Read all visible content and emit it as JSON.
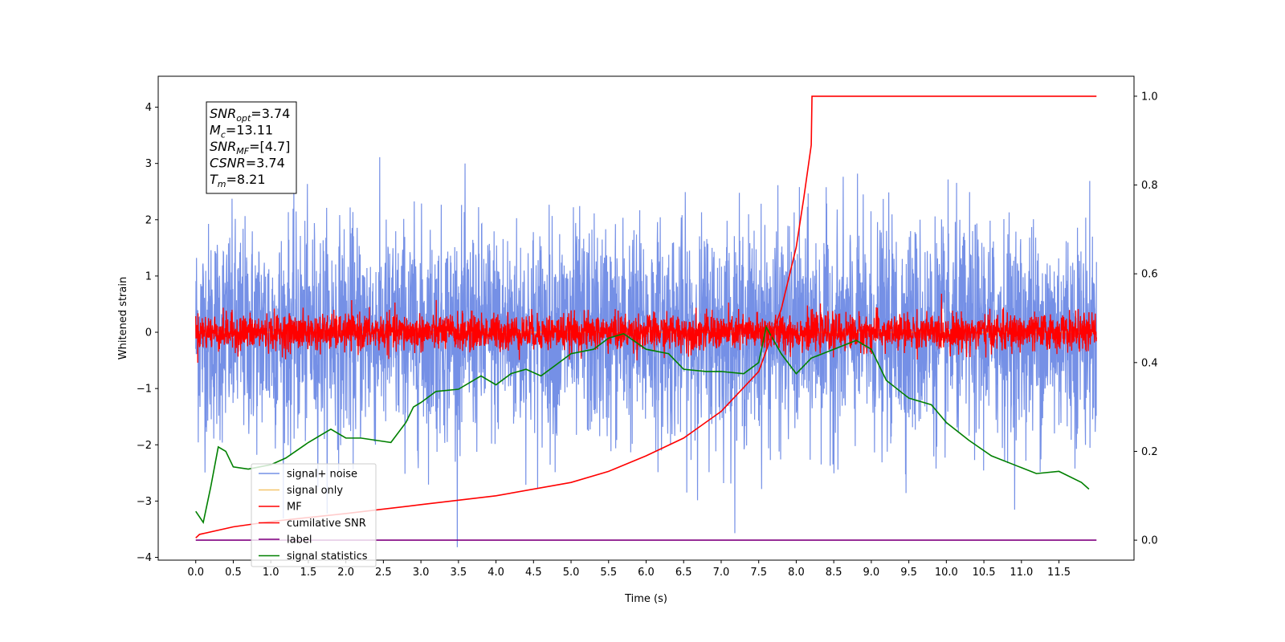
{
  "chart_data": {
    "type": "line",
    "xlabel": "Time (s)",
    "ylabel": "Whitened strain",
    "xlim": [
      -0.5,
      12.5
    ],
    "ylim": [
      -4.05,
      4.55
    ],
    "y2lim": [
      -0.045,
      1.045
    ],
    "x_ticks": [
      "0.0",
      "0.5",
      "1.0",
      "1.5",
      "2.0",
      "2.5",
      "3.0",
      "3.5",
      "4.0",
      "4.5",
      "5.0",
      "5.5",
      "6.0",
      "6.5",
      "7.0",
      "7.5",
      "8.0",
      "8.5",
      "9.0",
      "9.5",
      "10.0",
      "10.5",
      "11.0",
      "11.5"
    ],
    "y_ticks": [
      "4",
      "3",
      "2",
      "1",
      "0",
      "−1",
      "−2",
      "−3",
      "−4"
    ],
    "y2_ticks": [
      "1.0",
      "0.8",
      "0.6",
      "0.4",
      "0.2",
      "0.0"
    ],
    "grid": false,
    "legend_position": "lower-left",
    "annotation": {
      "lines": [
        {
          "var": "SNR",
          "sub": "opt",
          "value": "=3.74"
        },
        {
          "var": "M",
          "sub": "c",
          "value": "=13.11"
        },
        {
          "var": "SNR",
          "sub": "MF",
          "value": "=[4.7]"
        },
        {
          "var": "CSNR",
          "sub": "",
          "value": "=3.74"
        },
        {
          "var": "T",
          "sub": "m",
          "value": "=8.21"
        }
      ]
    },
    "series": [
      {
        "name": "signal+ noise",
        "color": "#7590e6",
        "axis": "left",
        "kind": "noise",
        "amplitude_std": 0.95,
        "x_range": [
          0.0,
          12.0
        ]
      },
      {
        "name": "signal only",
        "color": "#f5c56c",
        "axis": "left",
        "kind": "flat",
        "x_range": [
          0.0,
          12.0
        ]
      },
      {
        "name": "MF",
        "color": "#ff0000",
        "axis": "left",
        "kind": "noise",
        "amplitude_std": 0.16,
        "x_range": [
          0.0,
          12.0
        ]
      },
      {
        "name": "cumilative SNR",
        "color": "#ff0000",
        "axis": "right",
        "x": [
          0.0,
          0.05,
          0.5,
          1.0,
          2.0,
          3.0,
          4.0,
          5.0,
          5.5,
          6.0,
          6.5,
          7.0,
          7.5,
          7.8,
          8.0,
          8.1,
          8.2,
          8.21,
          9.0,
          10.0,
          11.0,
          11.5,
          12.0
        ],
        "values": [
          0.005,
          0.013,
          0.03,
          0.042,
          0.06,
          0.08,
          0.1,
          0.13,
          0.155,
          0.19,
          0.23,
          0.29,
          0.38,
          0.52,
          0.66,
          0.77,
          0.89,
          1.0,
          1.0,
          1.0,
          1.0,
          1.0,
          1.0
        ]
      },
      {
        "name": "label",
        "color": "#800080",
        "axis": "right",
        "x": [
          0.0,
          12.0
        ],
        "values": [
          0.0,
          0.0
        ]
      },
      {
        "name": "signal statistics",
        "color": "#008000",
        "axis": "right",
        "x": [
          0.0,
          0.1,
          0.2,
          0.3,
          0.4,
          0.5,
          0.7,
          1.0,
          1.2,
          1.5,
          1.7,
          1.8,
          2.0,
          2.2,
          2.4,
          2.6,
          2.8,
          2.9,
          3.0,
          3.2,
          3.5,
          3.8,
          4.0,
          4.2,
          4.4,
          4.6,
          4.8,
          5.0,
          5.3,
          5.5,
          5.7,
          6.0,
          6.3,
          6.5,
          6.8,
          7.0,
          7.3,
          7.5,
          7.6,
          7.8,
          8.0,
          8.2,
          8.5,
          8.8,
          9.0,
          9.2,
          9.5,
          9.8,
          10.0,
          10.3,
          10.6,
          10.9,
          11.2,
          11.5,
          11.8,
          11.9
        ],
        "values": [
          0.065,
          0.04,
          0.12,
          0.21,
          0.2,
          0.165,
          0.16,
          0.17,
          0.185,
          0.22,
          0.24,
          0.25,
          0.23,
          0.23,
          0.225,
          0.22,
          0.265,
          0.3,
          0.31,
          0.335,
          0.34,
          0.37,
          0.35,
          0.375,
          0.385,
          0.37,
          0.395,
          0.42,
          0.43,
          0.455,
          0.465,
          0.43,
          0.42,
          0.385,
          0.38,
          0.38,
          0.375,
          0.4,
          0.48,
          0.42,
          0.375,
          0.41,
          0.43,
          0.45,
          0.43,
          0.36,
          0.32,
          0.305,
          0.265,
          0.225,
          0.19,
          0.17,
          0.15,
          0.155,
          0.13,
          0.115
        ]
      }
    ]
  }
}
